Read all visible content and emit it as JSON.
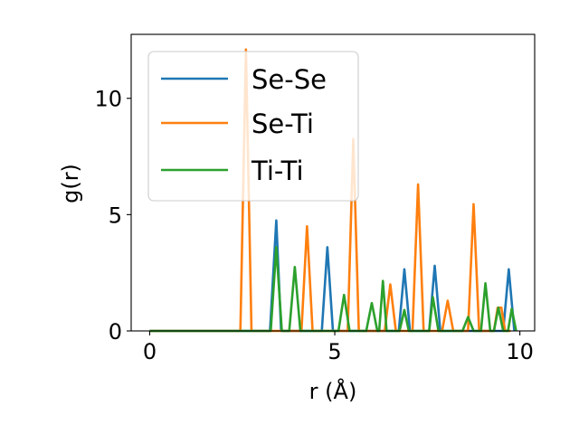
{
  "chart_data": {
    "type": "line",
    "title": "",
    "xlabel": "r (Å)",
    "ylabel": "g(r)",
    "xlim": [
      -0.5,
      10.4
    ],
    "ylim": [
      0,
      12.75
    ],
    "xticks": [
      0,
      5,
      10
    ],
    "yticks": [
      0,
      5,
      10
    ],
    "grid": false,
    "legend_position": "upper-left",
    "series": [
      {
        "name": "Se-Se",
        "color": "#1f77b4",
        "x": [
          0,
          3.25,
          3.42,
          3.55,
          4.65,
          4.8,
          4.95,
          6.73,
          6.88,
          7.03,
          7.55,
          7.7,
          7.85,
          9.55,
          9.7,
          9.85
        ],
        "y": [
          0,
          0,
          4.75,
          0,
          0,
          3.6,
          0,
          0,
          2.65,
          0,
          0,
          2.8,
          0,
          0,
          2.65,
          0
        ]
      },
      {
        "name": "Se-Ti",
        "color": "#ff7f0e",
        "x": [
          0,
          2.45,
          2.6,
          2.75,
          4.1,
          4.25,
          4.4,
          5.35,
          5.5,
          5.65,
          6.35,
          6.5,
          6.65,
          7.1,
          7.25,
          7.4,
          7.9,
          8.05,
          8.2,
          8.6,
          8.75,
          8.9,
          9.3,
          9.4,
          9.5,
          9.6,
          9.75
        ],
        "y": [
          0,
          0,
          12.1,
          0,
          0,
          4.5,
          0,
          0,
          8.25,
          0,
          0,
          2.0,
          0,
          0,
          6.3,
          0,
          0,
          1.3,
          0,
          0,
          5.45,
          0,
          0,
          1.0,
          1.0,
          0,
          0
        ]
      },
      {
        "name": "Ti-Ti",
        "color": "#2ca02c",
        "x": [
          0,
          3.27,
          3.42,
          3.57,
          3.77,
          3.92,
          4.07,
          5.1,
          5.25,
          5.4,
          5.85,
          6.0,
          6.15,
          6.2,
          6.3,
          6.4,
          6.75,
          6.88,
          7.0,
          7.05,
          7.3,
          7.55,
          7.65,
          7.8,
          7.97,
          8.45,
          8.6,
          8.75,
          8.95,
          9.07,
          9.2,
          9.3,
          9.42,
          9.55,
          9.68,
          9.78,
          9.9
        ],
        "y": [
          0,
          0,
          3.6,
          0,
          0,
          2.75,
          0,
          0,
          1.55,
          0,
          0,
          1.2,
          0,
          0,
          2.15,
          0,
          0,
          0.9,
          0,
          0,
          0,
          0,
          1.45,
          0,
          0,
          0,
          0.6,
          0,
          0,
          2.05,
          0,
          0,
          1.0,
          0,
          0,
          0.95,
          0
        ]
      }
    ]
  }
}
